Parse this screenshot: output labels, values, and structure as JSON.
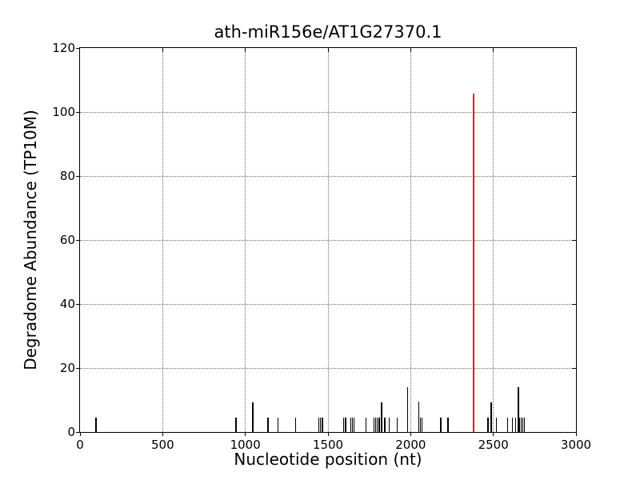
{
  "chart_data": {
    "type": "bar",
    "title": "ath-miR156e/AT1G27370.1",
    "xlabel": "Nucleotide position (nt)",
    "ylabel": "Degradome Abundance (TP10M)",
    "xlim": [
      0,
      3000
    ],
    "ylim": [
      0,
      120
    ],
    "xticks": [
      0,
      500,
      1000,
      1500,
      2000,
      2500,
      3000
    ],
    "yticks": [
      0,
      20,
      40,
      60,
      80,
      100,
      120
    ],
    "grid": "dotted",
    "legend": "none",
    "bar_color": "#000000",
    "highlight_color": "#ff0000",
    "highlight_point": {
      "x": 2380,
      "y": 105.7
    },
    "points": [
      {
        "x": 97,
        "y": 4.6
      },
      {
        "x": 943,
        "y": 4.6
      },
      {
        "x": 1045,
        "y": 9.3
      },
      {
        "x": 1137,
        "y": 4.6
      },
      {
        "x": 1199,
        "y": 4.6
      },
      {
        "x": 1304,
        "y": 4.6
      },
      {
        "x": 1443,
        "y": 4.6
      },
      {
        "x": 1455,
        "y": 4.6
      },
      {
        "x": 1466,
        "y": 4.6
      },
      {
        "x": 1594,
        "y": 4.6
      },
      {
        "x": 1607,
        "y": 4.6
      },
      {
        "x": 1637,
        "y": 4.6
      },
      {
        "x": 1648,
        "y": 4.6
      },
      {
        "x": 1656,
        "y": 4.6
      },
      {
        "x": 1729,
        "y": 4.6
      },
      {
        "x": 1777,
        "y": 4.6
      },
      {
        "x": 1788,
        "y": 4.6
      },
      {
        "x": 1798,
        "y": 4.6
      },
      {
        "x": 1810,
        "y": 4.6
      },
      {
        "x": 1824,
        "y": 9.3
      },
      {
        "x": 1844,
        "y": 4.6
      },
      {
        "x": 1871,
        "y": 4.6
      },
      {
        "x": 1920,
        "y": 4.6
      },
      {
        "x": 1980,
        "y": 13.9
      },
      {
        "x": 2048,
        "y": 9.5
      },
      {
        "x": 2058,
        "y": 4.6
      },
      {
        "x": 2067,
        "y": 4.6
      },
      {
        "x": 2182,
        "y": 4.6
      },
      {
        "x": 2226,
        "y": 4.6
      },
      {
        "x": 2380,
        "y": 105.7,
        "color": "#ff0000"
      },
      {
        "x": 2468,
        "y": 4.6
      },
      {
        "x": 2487,
        "y": 9.3
      },
      {
        "x": 2520,
        "y": 4.6
      },
      {
        "x": 2585,
        "y": 4.6
      },
      {
        "x": 2614,
        "y": 4.6
      },
      {
        "x": 2635,
        "y": 4.6
      },
      {
        "x": 2652,
        "y": 13.9
      },
      {
        "x": 2656,
        "y": 4.6
      },
      {
        "x": 2669,
        "y": 4.6
      },
      {
        "x": 2678,
        "y": 4.6
      },
      {
        "x": 2687,
        "y": 4.6
      }
    ]
  }
}
